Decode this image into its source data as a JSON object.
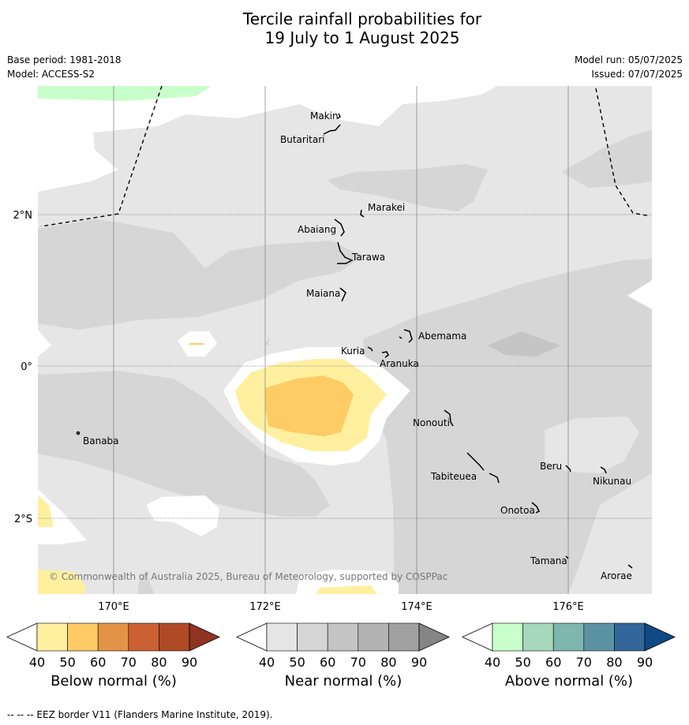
{
  "title_line1": "Tercile rainfall probabilities for",
  "title_line2": "19 July to 1 August 2025",
  "base_period": "Base period: 1981-2018",
  "model": "Model: ACCESS-S2",
  "model_run": "Model run: 05/07/2025",
  "issued": "Issued: 07/07/2025",
  "lat_labels": [
    "2°N",
    "0°",
    "2°S"
  ],
  "lon_labels": [
    "170°E",
    "172°E",
    "174°E",
    "176°E"
  ],
  "places": {
    "makin": "Makin",
    "butaritari": "Butaritari",
    "marakei": "Marakei",
    "abaiang": "Abaiang",
    "tarawa": "Tarawa",
    "maiana": "Maiana",
    "abemama": "Abemama",
    "kuria": "Kuria",
    "aranuka": "Aranuka",
    "banaba": "Banaba",
    "nonouti": "Nonouti",
    "beru": "Beru",
    "nikunau": "Nikunau",
    "tabiteuea": "Tabiteuea",
    "onotoa": "Onotoa",
    "tamana": "Tamana",
    "arorae": "Arorae"
  },
  "copyright": "© Commonwealth of Australia 2025, Bureau of Meteorology, supported by COSPPac",
  "colorbars": {
    "ticks": [
      "40",
      "50",
      "60",
      "70",
      "80",
      "90"
    ],
    "below": {
      "label": "Below normal (%)",
      "colors": [
        "#fff0a0",
        "#fecb65",
        "#e39346",
        "#cb6132",
        "#b04a26",
        "#903321"
      ]
    },
    "near": {
      "label": "Near normal (%)",
      "colors": [
        "#e6e6e6",
        "#d6d6d6",
        "#c5c5c5",
        "#b3b3b3",
        "#a1a1a1",
        "#858585"
      ]
    },
    "above": {
      "label": "Above normal (%)",
      "colors": [
        "#c9ffca",
        "#a6d8bc",
        "#7fb6b0",
        "#5c93a2",
        "#33669a",
        "#104a84"
      ]
    }
  },
  "footer": "-- -- -- EEZ border V11 (Flanders Marine Institute, 2019)."
}
